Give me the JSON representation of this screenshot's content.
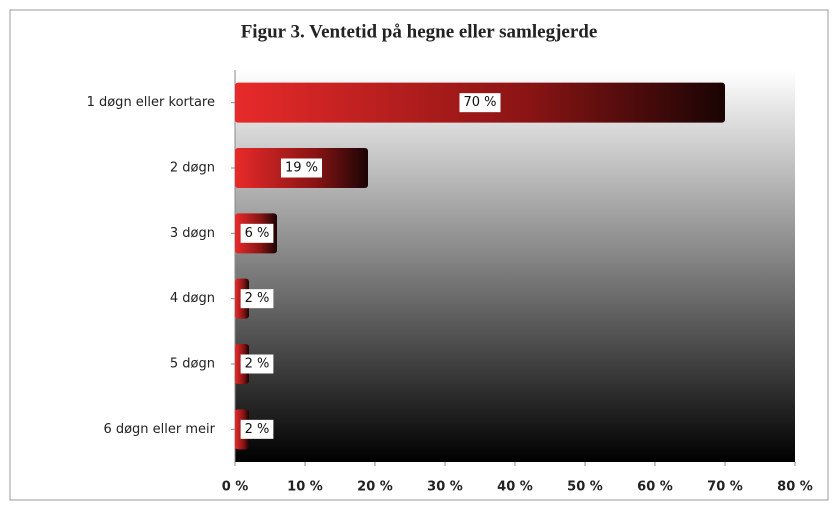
{
  "chart_data": {
    "type": "bar",
    "orientation": "horizontal",
    "title": "Figur 3. Ventetid på hegne eller samlegjerde",
    "categories": [
      "1 døgn eller kortare",
      "2 døgn",
      "3 døgn",
      "4 døgn",
      "5 døgn",
      "6 døgn eller meir"
    ],
    "values": [
      70,
      19,
      6,
      2,
      2,
      2
    ],
    "value_labels": [
      "70 %",
      "19 %",
      "6 %",
      "2 %",
      "2 %",
      "2 %"
    ],
    "color": "#e02020",
    "xlim": [
      0,
      80
    ],
    "xticks": [
      {
        "value": 0,
        "label": "0 %"
      },
      {
        "value": 10,
        "label": "10 %"
      },
      {
        "value": 20,
        "label": "20 %"
      },
      {
        "value": 30,
        "label": "30 %"
      },
      {
        "value": 40,
        "label": "40 %"
      },
      {
        "value": 50,
        "label": "50 %"
      },
      {
        "value": 60,
        "label": "60 %"
      },
      {
        "value": 70,
        "label": "70 %"
      },
      {
        "value": 80,
        "label": "80 %"
      }
    ]
  }
}
